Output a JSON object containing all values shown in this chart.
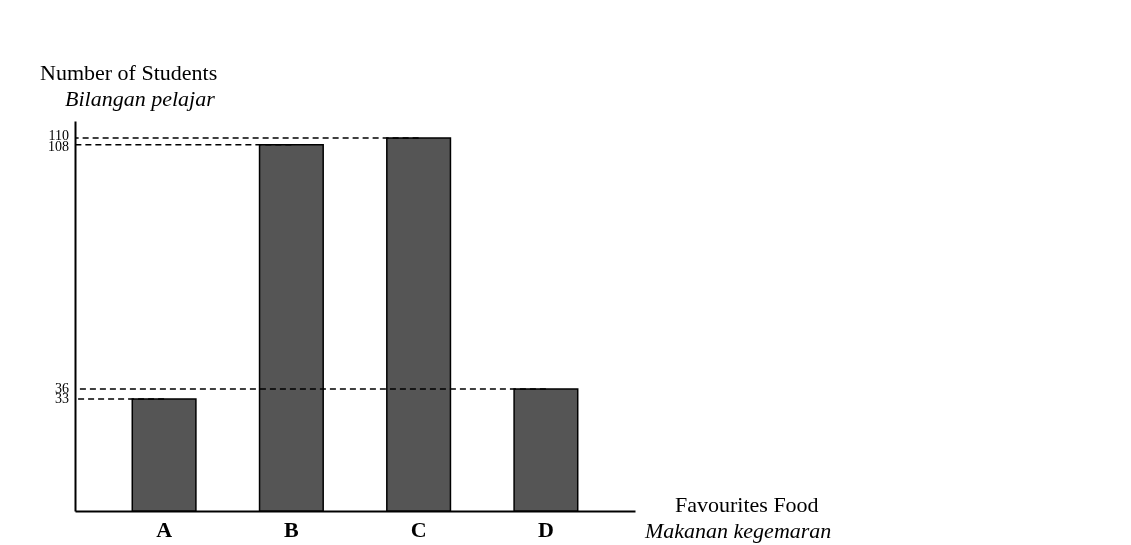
{
  "chart_data": {
    "type": "bar",
    "xlabel": "Favourites Food\nMakanan kegemaran",
    "ylabel": "Number of Students\nBilangan pelajar",
    "categories": [
      "A",
      "B",
      "C",
      "D"
    ],
    "values": [
      33,
      108,
      110,
      36
    ],
    "color": "#555555",
    "ylim": [
      0,
      115
    ],
    "yticks": [
      33,
      36,
      108,
      110
    ],
    "grid": false,
    "ref_lines": [
      {
        "axis": "y",
        "value": 33,
        "label": null,
        "line_style": "dashed"
      },
      {
        "axis": "y",
        "value": 36,
        "label": null,
        "line_style": "dashed"
      },
      {
        "axis": "y",
        "value": 108,
        "label": null,
        "line_style": "dashed"
      },
      {
        "axis": "y",
        "value": 110,
        "label": null,
        "line_style": "dashed"
      }
    ]
  }
}
